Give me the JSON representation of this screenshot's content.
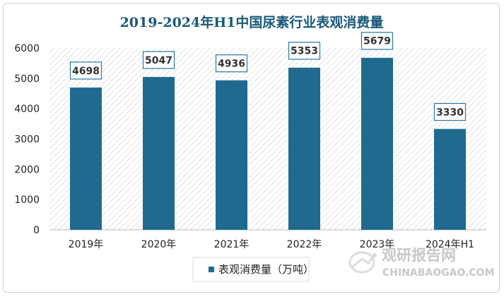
{
  "chart_data": {
    "type": "bar",
    "title": "2019-2024年H1中国尿素行业表观消费量",
    "categories": [
      "2019年",
      "2020年",
      "2021年",
      "2022年",
      "2023年",
      "2024年H1"
    ],
    "series": [
      {
        "name": "表观消费量（万吨）",
        "values": [
          4698,
          5047,
          4936,
          5353,
          5679,
          3330
        ]
      }
    ],
    "y_ticks": [
      0,
      1000,
      2000,
      3000,
      4000,
      5000,
      6000
    ],
    "ylim": [
      0,
      6000
    ],
    "grid": false,
    "legend_position": "bottom",
    "data_labels": true,
    "colors": {
      "bar": "#1f6a8e",
      "title": "#1a5a7a",
      "label_border": "#2a7aa0"
    }
  },
  "watermark": {
    "text_cn": "观研报告网",
    "text_en": "CHINABAOGAO.COM",
    "logo_icon": "chinabaogao-logo-icon"
  }
}
